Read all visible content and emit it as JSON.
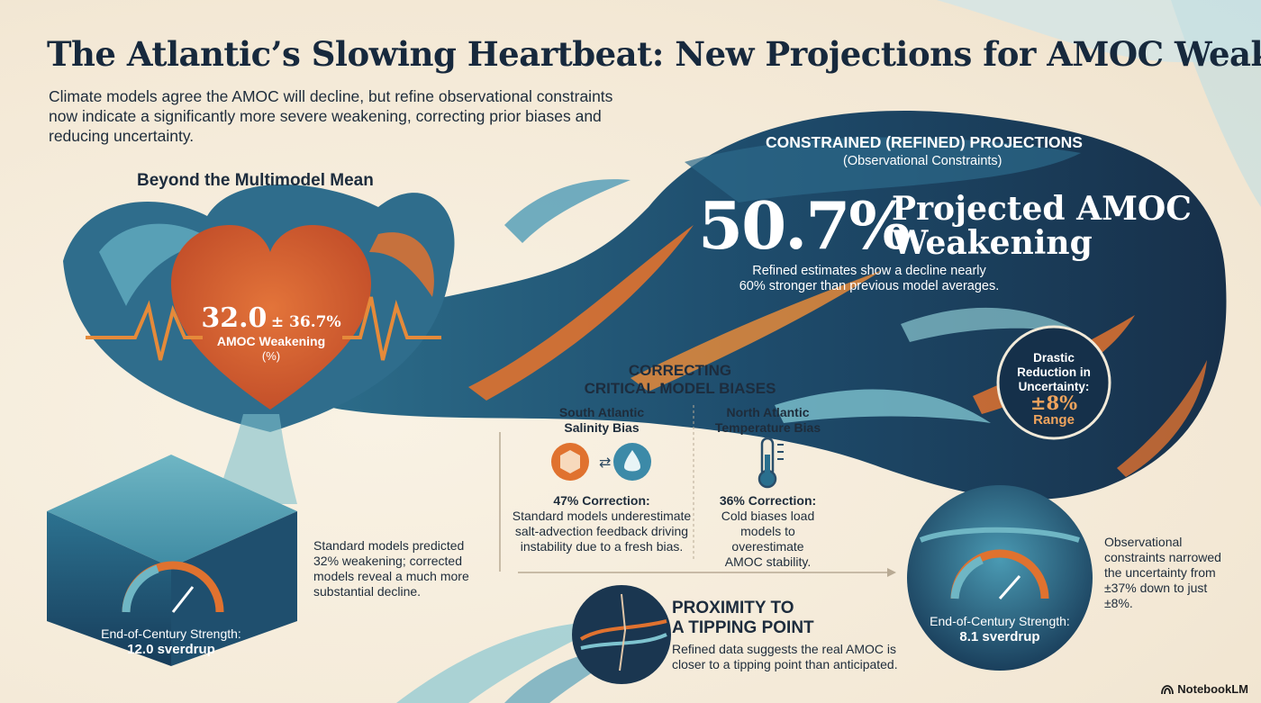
{
  "header": {
    "title": "The Atlantic’s Slowing Heartbeat: New Projections for AMOC Weakening",
    "subtitle": "Climate models agree the AMOC will decline, but refine observational constraints now indicate a significantly more severe weakening, correcting prior biases and reducing uncertainty."
  },
  "left": {
    "heading": "Beyond the Multimodel Mean",
    "heart_value": "32.0",
    "heart_pm": "± 36.7%",
    "heart_label": "AMOC Weakening",
    "heart_unit": "(%)",
    "cube_label": "End-of-Century Strength:",
    "cube_value": "12.0 sverdrup",
    "note": "Standard models predicted 32% weakening; corrected models reveal a much more substantial decline."
  },
  "right": {
    "heading": "CONSTRAINED (REFINED) PROJECTIONS",
    "subheading": "(Observational Constraints)",
    "big_pct": "50.7%",
    "big_label_1": "Projected AMOC",
    "big_label_2": "Weakening",
    "desc": "Refined estimates show a decline nearly 60% stronger than previous model averages.",
    "reduction_label": "Drastic Reduction in Uncertainty:",
    "reduction_value": "±8%",
    "reduction_unit": "Range",
    "circle_label": "End-of-Century Strength:",
    "circle_value": "8.1 sverdrup",
    "note": "Observational constraints narrowed the uncertainty from ±37% down to just ±8%."
  },
  "biases": {
    "heading_1": "CORRECTING",
    "heading_2": "CRITICAL MODEL BIASES",
    "south_title": "South Atlantic Salinity Bias",
    "south_pct": "47% Correction:",
    "south_text": "Standard models underestimate salt-advection feedback driving instability due to a fresh bias.",
    "north_title": "North Atlantic Temperature Bias",
    "north_pct": "36% Correction:",
    "north_text": "Cold biases load models to overestimate AMOC stability."
  },
  "tipping": {
    "title_1": "PROXIMITY TO",
    "title_2": "A TIPPING POINT",
    "text": "Refined data suggests the real AMOC is closer to a tipping point than anticipated."
  },
  "brand": "NotebookLM",
  "colors": {
    "navy": "#1b3450",
    "teal": "#2f7f9e",
    "orange": "#e0722f",
    "cream": "#f6eedf"
  }
}
